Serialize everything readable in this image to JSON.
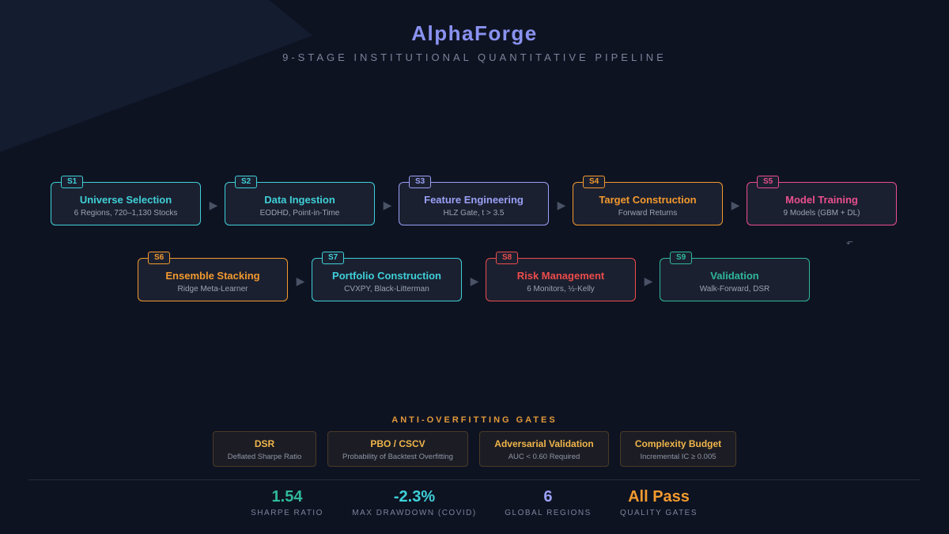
{
  "header": {
    "title": "AlphaForge",
    "subtitle": "9-STAGE INSTITUTIONAL QUANTITATIVE PIPELINE"
  },
  "stages": [
    {
      "badge": "S1",
      "name": "Universe Selection",
      "desc": "6 Regions, 720–1,130 Stocks",
      "color": "#3fd0d8"
    },
    {
      "badge": "S2",
      "name": "Data Ingestion",
      "desc": "EODHD, Point-in-Time",
      "color": "#3fd0d8"
    },
    {
      "badge": "S3",
      "name": "Feature Engineering",
      "desc": "HLZ Gate, t > 3.5",
      "color": "#9aa0f5"
    },
    {
      "badge": "S4",
      "name": "Target Construction",
      "desc": "Forward Returns",
      "color": "#f39a2e"
    },
    {
      "badge": "S5",
      "name": "Model Training",
      "desc": "9 Models (GBM + DL)",
      "color": "#ea4f8e"
    },
    {
      "badge": "S6",
      "name": "Ensemble Stacking",
      "desc": "Ridge Meta-Learner",
      "color": "#f39a2e"
    },
    {
      "badge": "S7",
      "name": "Portfolio Construction",
      "desc": "CVXPY, Black-Litterman",
      "color": "#3fd0d8"
    },
    {
      "badge": "S8",
      "name": "Risk Management",
      "desc": "6 Monitors, ½-Kelly",
      "color": "#ec4c4c"
    },
    {
      "badge": "S9",
      "name": "Validation",
      "desc": "Walk-Forward, DSR",
      "color": "#2fb89a"
    }
  ],
  "arrows": {
    "glyph": "▶",
    "return_glyph": "⬐"
  },
  "gates": {
    "title": "ANTI-OVERFITTING GATES",
    "items": [
      {
        "name": "DSR",
        "desc": "Deflated Sharpe Ratio"
      },
      {
        "name": "PBO / CSCV",
        "desc": "Probability of Backtest Overfitting"
      },
      {
        "name": "Adversarial Validation",
        "desc": "AUC < 0.60 Required"
      },
      {
        "name": "Complexity Budget",
        "desc": "Incremental IC ≥ 0.005"
      }
    ]
  },
  "stats": [
    {
      "value": "1.54",
      "label": "SHARPE RATIO",
      "color": "#2fb89a"
    },
    {
      "value": "-2.3%",
      "label": "MAX DRAWDOWN (COVID)",
      "color": "#3fd0d8"
    },
    {
      "value": "6",
      "label": "GLOBAL REGIONS",
      "color": "#9aa0f5"
    },
    {
      "value": "All Pass",
      "label": "QUALITY GATES",
      "color": "#f39a2e"
    }
  ]
}
